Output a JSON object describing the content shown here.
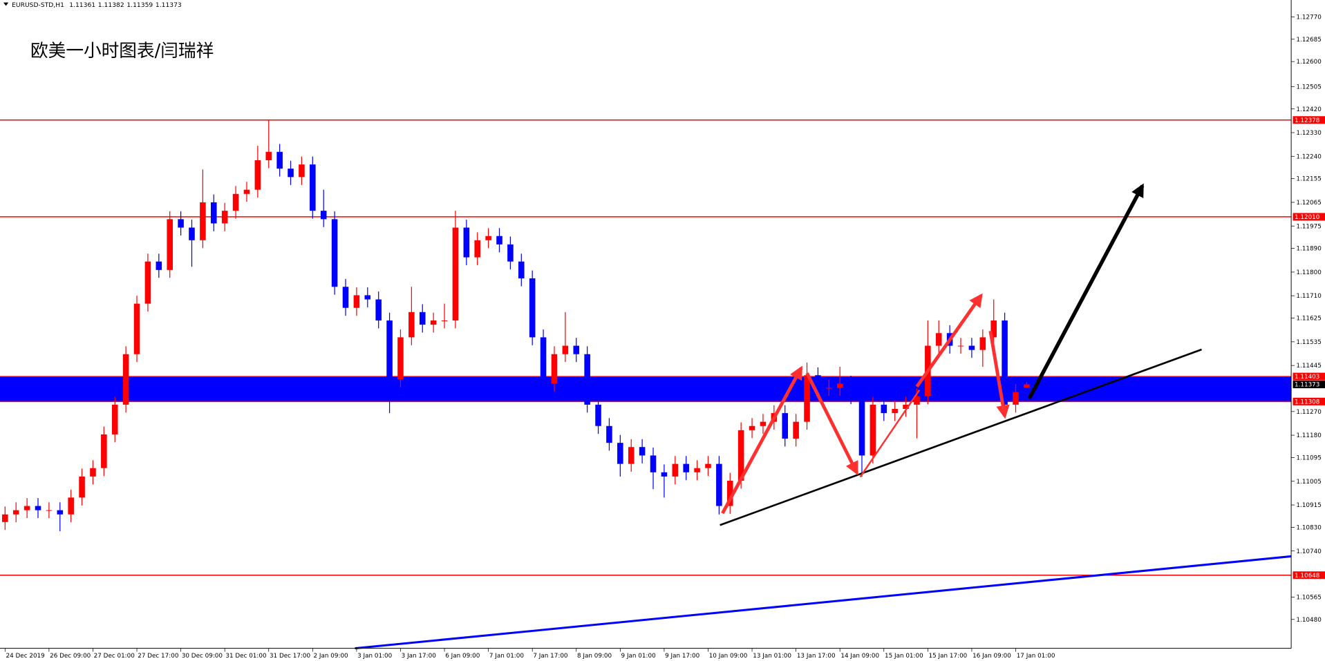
{
  "chart_data": {
    "type": "candlestick",
    "symbol": "EURUSD-STD,H1",
    "title": "欧美一小时图表/闫瑞祥",
    "up_color": "#ff0000",
    "down_color": "#0000ff",
    "xlim": [
      -0.46,
      117.08
    ],
    "ylim": [
      1.1037,
      1.12834
    ],
    "xticks": [
      {
        "value": 0,
        "label": "24 Dec 2019"
      },
      {
        "value": 4,
        "label": "26 Dec 09:00"
      },
      {
        "value": 8,
        "label": "27 Dec 01:00"
      },
      {
        "value": 12,
        "label": "27 Dec 17:00"
      },
      {
        "value": 16,
        "label": "30 Dec 09:00"
      },
      {
        "value": 20,
        "label": "31 Dec 01:00"
      },
      {
        "value": 24,
        "label": "31 Dec 17:00"
      },
      {
        "value": 28,
        "label": "2 Jan 09:00"
      },
      {
        "value": 32,
        "label": "3 Jan 01:00"
      },
      {
        "value": 36,
        "label": "3 Jan 17:00"
      },
      {
        "value": 40,
        "label": "6 Jan 09:00"
      },
      {
        "value": 44,
        "label": "7 Jan 01:00"
      },
      {
        "value": 48,
        "label": "7 Jan 17:00"
      },
      {
        "value": 52,
        "label": "8 Jan 09:00"
      },
      {
        "value": 56,
        "label": "9 Jan 01:00"
      },
      {
        "value": 60,
        "label": "9 Jan 17:00"
      },
      {
        "value": 64,
        "label": "10 Jan 09:00"
      },
      {
        "value": 68,
        "label": "13 Jan 01:00"
      },
      {
        "value": 72,
        "label": "13 Jan 17:00"
      },
      {
        "value": 76,
        "label": "14 Jan 09:00"
      },
      {
        "value": 80,
        "label": "15 Jan 01:00"
      },
      {
        "value": 84,
        "label": "15 Jan 17:00"
      },
      {
        "value": 88,
        "label": "16 Jan 09:00"
      },
      {
        "value": 92,
        "label": "17 Jan 01:00"
      }
    ],
    "yticks": [
      {
        "value": 1.1277,
        "label": "1.12770"
      },
      1.12685,
      {
        "value": 1.126,
        "label": "1.12600"
      },
      1.12505,
      {
        "value": 1.1242,
        "label": "1.12420"
      },
      {
        "value": 1.1233,
        "label": "1.12330"
      },
      {
        "value": 1.1224,
        "label": "1.12240"
      },
      1.12155,
      1.12065,
      1.11975,
      {
        "value": 1.1189,
        "label": "1.11890"
      },
      {
        "value": 1.118,
        "label": "1.11800"
      },
      {
        "value": 1.1171,
        "label": "1.11710"
      },
      1.11625,
      1.11535,
      1.11445,
      {
        "value": 1.1127,
        "label": "1.11270"
      },
      {
        "value": 1.1118,
        "label": "1.11180"
      },
      1.11095,
      1.11005,
      1.10915,
      {
        "value": 1.1083,
        "label": "1.10830"
      },
      {
        "value": 1.1074,
        "label": "1.10740"
      },
      1.10565,
      {
        "value": 1.1048,
        "label": "1.10480"
      }
    ],
    "levels": [
      1.12378,
      {
        "value": 1.1201,
        "label": "1.12010"
      },
      1.10648
    ],
    "level_color": "#ff0000",
    "zone": {
      "low": 1.11308,
      "high": 1.11403,
      "color": "#0000ff"
    },
    "candles": [
      [
        1.1085,
        1.10909,
        1.1082,
        1.10879
      ],
      [
        1.10879,
        1.10925,
        1.10849,
        1.10895
      ],
      [
        1.10895,
        1.10941,
        1.10865,
        1.10911
      ],
      [
        1.10911,
        1.10941,
        1.10865,
        1.10895
      ],
      [
        1.10895,
        1.10925,
        1.10865,
        1.10895
      ],
      [
        1.10895,
        1.10925,
        1.10815,
        1.10879
      ],
      [
        1.10879,
        1.10973,
        1.10849,
        1.10943
      ],
      [
        1.10943,
        1.11053,
        1.10913,
        1.11023
      ],
      [
        1.11023,
        1.11085,
        1.10993,
        1.11055
      ],
      [
        1.11055,
        1.11213,
        1.11025,
        1.11183
      ],
      [
        1.11183,
        1.11326,
        1.11153,
        1.11296
      ],
      [
        1.11296,
        1.11518,
        1.11266,
        1.11488
      ],
      [
        1.11488,
        1.1171,
        1.11458,
        1.1168
      ],
      [
        1.1168,
        1.1187,
        1.1165,
        1.1184
      ],
      [
        1.1184,
        1.1187,
        1.11778,
        1.11808
      ],
      [
        1.11808,
        1.12031,
        1.11778,
        1.12001
      ],
      [
        1.12001,
        1.12031,
        1.11939,
        1.11969
      ],
      [
        1.11969,
        1.11999,
        1.1182,
        1.11921
      ],
      [
        1.11921,
        1.1219,
        1.11891,
        1.12065
      ],
      [
        1.12065,
        1.12095,
        1.11955,
        1.11985
      ],
      [
        1.11985,
        1.12063,
        1.11955,
        1.12033
      ],
      [
        1.12033,
        1.12127,
        1.12003,
        1.12097
      ],
      [
        1.12097,
        1.12143,
        1.12067,
        1.12113
      ],
      [
        1.12113,
        1.1228,
        1.12083,
        1.12225
      ],
      [
        1.12225,
        1.12378,
        1.12195,
        1.12257
      ],
      [
        1.12257,
        1.12287,
        1.12163,
        1.12193
      ],
      [
        1.12193,
        1.12223,
        1.12131,
        1.12161
      ],
      [
        1.12161,
        1.12239,
        1.12131,
        1.12209
      ],
      [
        1.12209,
        1.12239,
        1.12003,
        1.12033
      ],
      [
        1.12033,
        1.12113,
        1.11971,
        1.12001
      ],
      [
        1.12001,
        1.12031,
        1.11714,
        1.11744
      ],
      [
        1.11744,
        1.11774,
        1.11634,
        1.11664
      ],
      [
        1.11664,
        1.11742,
        1.11634,
        1.11712
      ],
      [
        1.11712,
        1.11742,
        1.11666,
        1.11696
      ],
      [
        1.11696,
        1.11726,
        1.11586,
        1.11616
      ],
      [
        1.11616,
        1.11646,
        1.11264,
        1.11392
      ],
      [
        1.11392,
        1.11582,
        1.11362,
        1.11552
      ],
      [
        1.11552,
        1.11744,
        1.11522,
        1.11648
      ],
      [
        1.11648,
        1.11678,
        1.1157,
        1.116
      ],
      [
        1.116,
        1.11646,
        1.1157,
        1.11616
      ],
      [
        1.11616,
        1.1168,
        1.11586,
        1.11616
      ],
      [
        1.11616,
        1.12033,
        1.11586,
        1.11969
      ],
      [
        1.11969,
        1.11999,
        1.11826,
        1.11856
      ],
      [
        1.11856,
        1.11951,
        1.11826,
        1.11921
      ],
      [
        1.11921,
        1.11967,
        1.11891,
        1.11937
      ],
      [
        1.11937,
        1.11967,
        1.11875,
        1.11905
      ],
      [
        1.11905,
        1.11935,
        1.1181,
        1.1184
      ],
      [
        1.1184,
        1.1187,
        1.11746,
        1.11776
      ],
      [
        1.11776,
        1.11806,
        1.11522,
        1.11552
      ],
      [
        1.11552,
        1.11582,
        1.11346,
        1.11376
      ],
      [
        1.11376,
        1.11518,
        1.11346,
        1.11488
      ],
      [
        1.11488,
        1.11648,
        1.11458,
        1.1152
      ],
      [
        1.1152,
        1.1155,
        1.11458,
        1.11488
      ],
      [
        1.11488,
        1.11518,
        1.11266,
        1.11296
      ],
      [
        1.11296,
        1.11326,
        1.11185,
        1.11215
      ],
      [
        1.11215,
        1.11245,
        1.11121,
        1.11151
      ],
      [
        1.11151,
        1.11181,
        1.11023,
        1.11071
      ],
      [
        1.11071,
        1.11165,
        1.11041,
        1.11135
      ],
      [
        1.11135,
        1.11165,
        1.11073,
        1.11103
      ],
      [
        1.11103,
        1.11133,
        1.10975,
        1.11039
      ],
      [
        1.11039,
        1.11069,
        1.10943,
        1.11023
      ],
      [
        1.11023,
        1.11101,
        1.10993,
        1.11071
      ],
      [
        1.11071,
        1.11101,
        1.11009,
        1.11039
      ],
      [
        1.11039,
        1.11085,
        1.11009,
        1.11055
      ],
      [
        1.11055,
        1.11101,
        1.11025,
        1.11071
      ],
      [
        1.11071,
        1.11101,
        1.10879,
        1.10911
      ],
      [
        1.10911,
        1.11037,
        1.10881,
        1.11007
      ],
      [
        1.11007,
        1.11229,
        1.10977,
        1.11199
      ],
      [
        1.11199,
        1.11245,
        1.11169,
        1.11215
      ],
      [
        1.11215,
        1.11261,
        1.11185,
        1.11231
      ],
      [
        1.11231,
        1.11294,
        1.11201,
        1.11264
      ],
      [
        1.11264,
        1.11294,
        1.11137,
        1.11167
      ],
      [
        1.11167,
        1.11261,
        1.11137,
        1.11231
      ],
      [
        1.11231,
        1.11456,
        1.11201,
        1.11408
      ],
      [
        1.11408,
        1.11438,
        1.1133,
        1.1136
      ],
      [
        1.1136,
        1.1139,
        1.1133,
        1.1136
      ],
      [
        1.1136,
        1.1144,
        1.1133,
        1.11376
      ],
      [
        1.11376,
        1.11406,
        1.11298,
        1.11328
      ],
      [
        1.11328,
        1.11358,
        1.11023,
        1.11103
      ],
      [
        1.11103,
        1.11326,
        1.11073,
        1.11296
      ],
      [
        1.11296,
        1.11326,
        1.11234,
        1.11264
      ],
      [
        1.11264,
        1.1131,
        1.11234,
        1.1128
      ],
      [
        1.1128,
        1.11326,
        1.1125,
        1.11296
      ],
      [
        1.11296,
        1.11358,
        1.11168,
        1.11328
      ],
      [
        1.11328,
        1.11616,
        1.11298,
        1.1152
      ],
      [
        1.1152,
        1.11616,
        1.1149,
        1.11568
      ],
      [
        1.11568,
        1.11598,
        1.1149,
        1.1152
      ],
      [
        1.1152,
        1.1155,
        1.1149,
        1.1152
      ],
      [
        1.1152,
        1.1155,
        1.11474,
        1.11504
      ],
      [
        1.11504,
        1.11582,
        1.1144,
        1.11552
      ],
      [
        1.11552,
        1.11696,
        1.11522,
        1.11616
      ],
      [
        1.11616,
        1.11646,
        1.11247,
        1.11296
      ],
      [
        1.11296,
        1.11374,
        1.11266,
        1.11344
      ],
      [
        1.11361,
        1.11382,
        1.11359,
        1.11373
      ]
    ]
  }
}
